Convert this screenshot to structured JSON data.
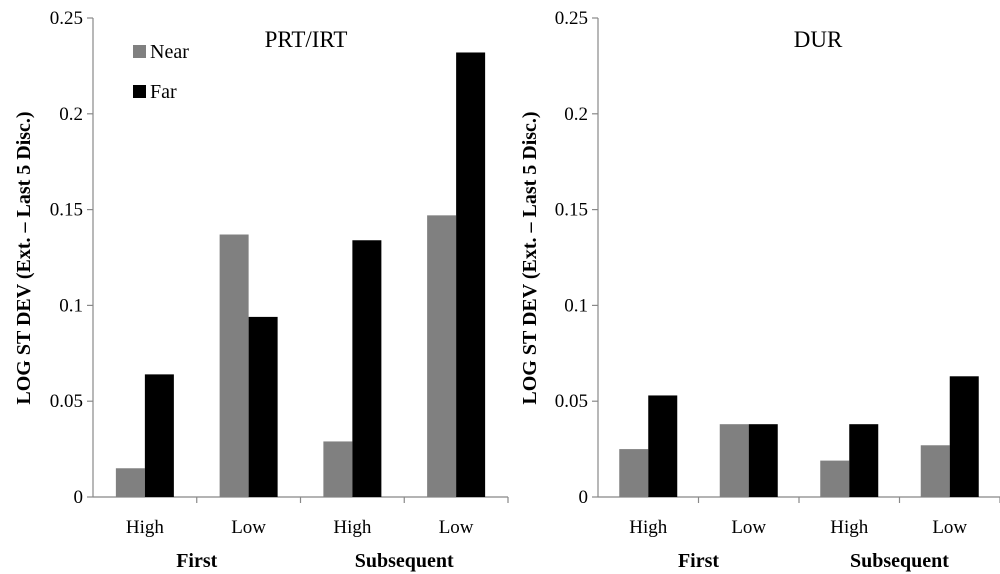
{
  "chart_data": [
    {
      "type": "bar",
      "title": "PRT/IRT",
      "ylabel": "LOG ST DEV (Ext. – Last 5 Disc.)",
      "ylim": [
        0,
        0.25
      ],
      "yticks": [
        "0",
        "0.05",
        "0.1",
        "0.15",
        "0.2",
        "0.25"
      ],
      "categories": [
        "High",
        "Low",
        "High",
        "Low"
      ],
      "groups": [
        "First",
        "Subsequent"
      ],
      "series": [
        {
          "name": "Near",
          "color": "#808080",
          "values": [
            0.015,
            0.137,
            0.029,
            0.147
          ]
        },
        {
          "name": "Far",
          "color": "#000000",
          "values": [
            0.064,
            0.094,
            0.134,
            0.232
          ]
        }
      ],
      "legend": "top-left",
      "grid": false
    },
    {
      "type": "bar",
      "title": "DUR",
      "ylabel": "LOG ST DEV (Ext. – Last 5 Disc.)",
      "ylim": [
        0,
        0.25
      ],
      "yticks": [
        "0",
        "0.05",
        "0.1",
        "0.15",
        "0.2",
        "0.25"
      ],
      "categories": [
        "High",
        "Low",
        "High",
        "Low"
      ],
      "groups": [
        "First",
        "Subsequent"
      ],
      "series": [
        {
          "name": "Near",
          "color": "#808080",
          "values": [
            0.025,
            0.038,
            0.019,
            0.027
          ]
        },
        {
          "name": "Far",
          "color": "#000000",
          "values": [
            0.053,
            0.038,
            0.038,
            0.063
          ]
        }
      ],
      "grid": false
    }
  ]
}
